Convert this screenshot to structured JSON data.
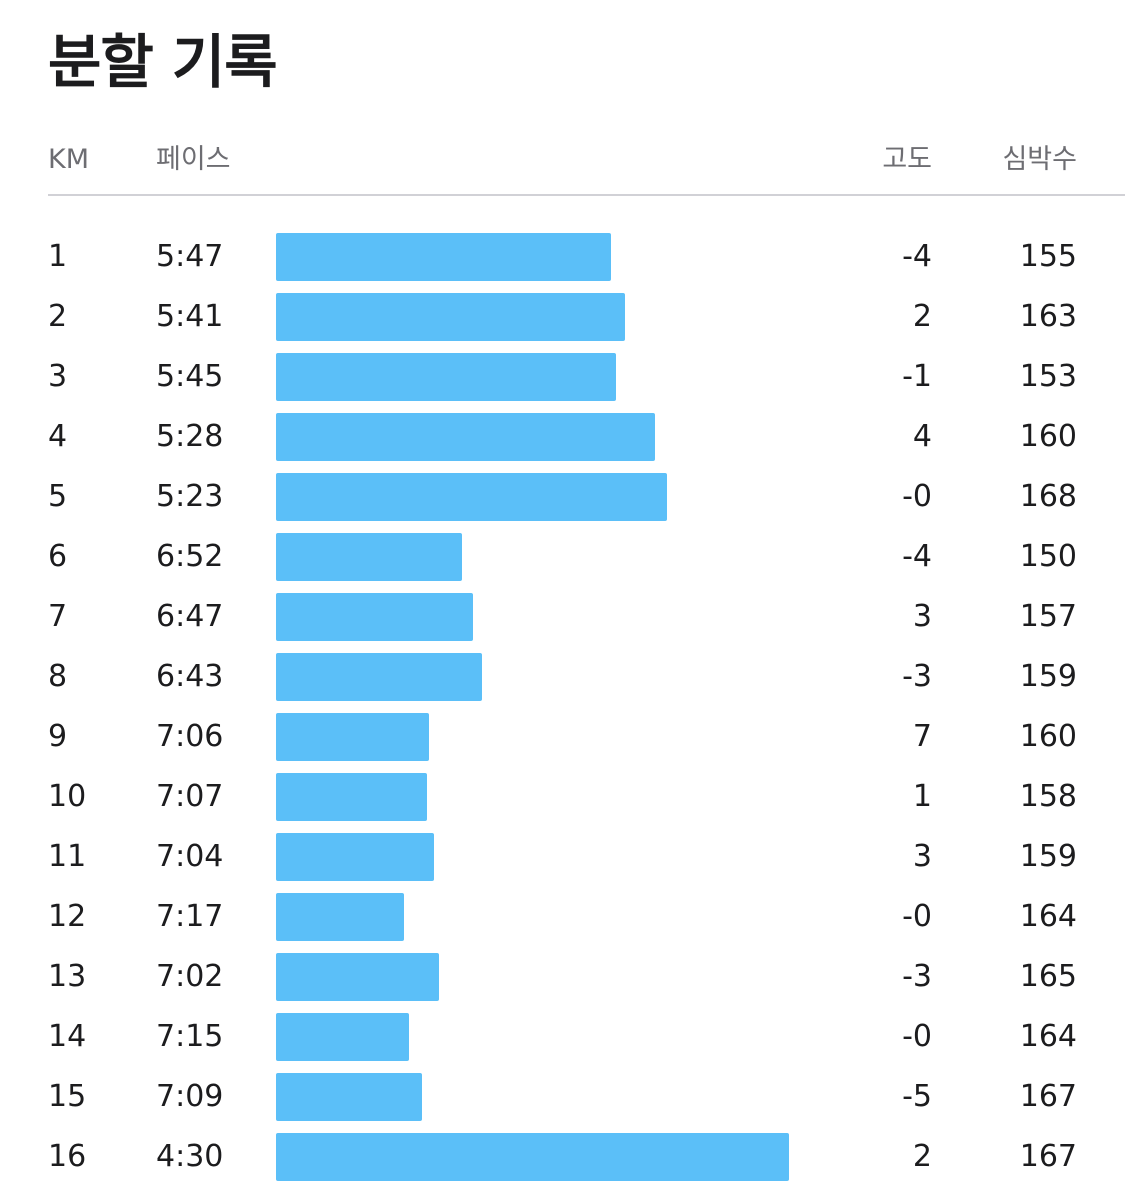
{
  "title": "분할 기록",
  "columns": {
    "km": "KM",
    "pace": "페이스",
    "elevation": "고도",
    "heart_rate": "심박수"
  },
  "colors": {
    "bar": "#5bbff8",
    "divider": "#d1d1d6",
    "header_text": "#6d6d72",
    "text": "#1c1c1e"
  },
  "bar_scale": {
    "slowest_pace_seconds": 437,
    "fastest_pace_seconds": 270
  },
  "splits": [
    {
      "km": "1",
      "pace": "5:47",
      "pace_seconds": 347,
      "elevation": "-4",
      "heart_rate": "155"
    },
    {
      "km": "2",
      "pace": "5:41",
      "pace_seconds": 341,
      "elevation": "2",
      "heart_rate": "163"
    },
    {
      "km": "3",
      "pace": "5:45",
      "pace_seconds": 345,
      "elevation": "-1",
      "heart_rate": "153"
    },
    {
      "km": "4",
      "pace": "5:28",
      "pace_seconds": 328,
      "elevation": "4",
      "heart_rate": "160"
    },
    {
      "km": "5",
      "pace": "5:23",
      "pace_seconds": 323,
      "elevation": "-0",
      "heart_rate": "168"
    },
    {
      "km": "6",
      "pace": "6:52",
      "pace_seconds": 412,
      "elevation": "-4",
      "heart_rate": "150"
    },
    {
      "km": "7",
      "pace": "6:47",
      "pace_seconds": 407,
      "elevation": "3",
      "heart_rate": "157"
    },
    {
      "km": "8",
      "pace": "6:43",
      "pace_seconds": 403,
      "elevation": "-3",
      "heart_rate": "159"
    },
    {
      "km": "9",
      "pace": "7:06",
      "pace_seconds": 426,
      "elevation": "7",
      "heart_rate": "160"
    },
    {
      "km": "10",
      "pace": "7:07",
      "pace_seconds": 427,
      "elevation": "1",
      "heart_rate": "158"
    },
    {
      "km": "11",
      "pace": "7:04",
      "pace_seconds": 424,
      "elevation": "3",
      "heart_rate": "159"
    },
    {
      "km": "12",
      "pace": "7:17",
      "pace_seconds": 437,
      "elevation": "-0",
      "heart_rate": "164"
    },
    {
      "km": "13",
      "pace": "7:02",
      "pace_seconds": 422,
      "elevation": "-3",
      "heart_rate": "165"
    },
    {
      "km": "14",
      "pace": "7:15",
      "pace_seconds": 435,
      "elevation": "-0",
      "heart_rate": "164"
    },
    {
      "km": "15",
      "pace": "7:09",
      "pace_seconds": 429,
      "elevation": "-5",
      "heart_rate": "167"
    },
    {
      "km": "16",
      "pace": "4:30",
      "pace_seconds": 270,
      "elevation": "2",
      "heart_rate": "167"
    }
  ]
}
